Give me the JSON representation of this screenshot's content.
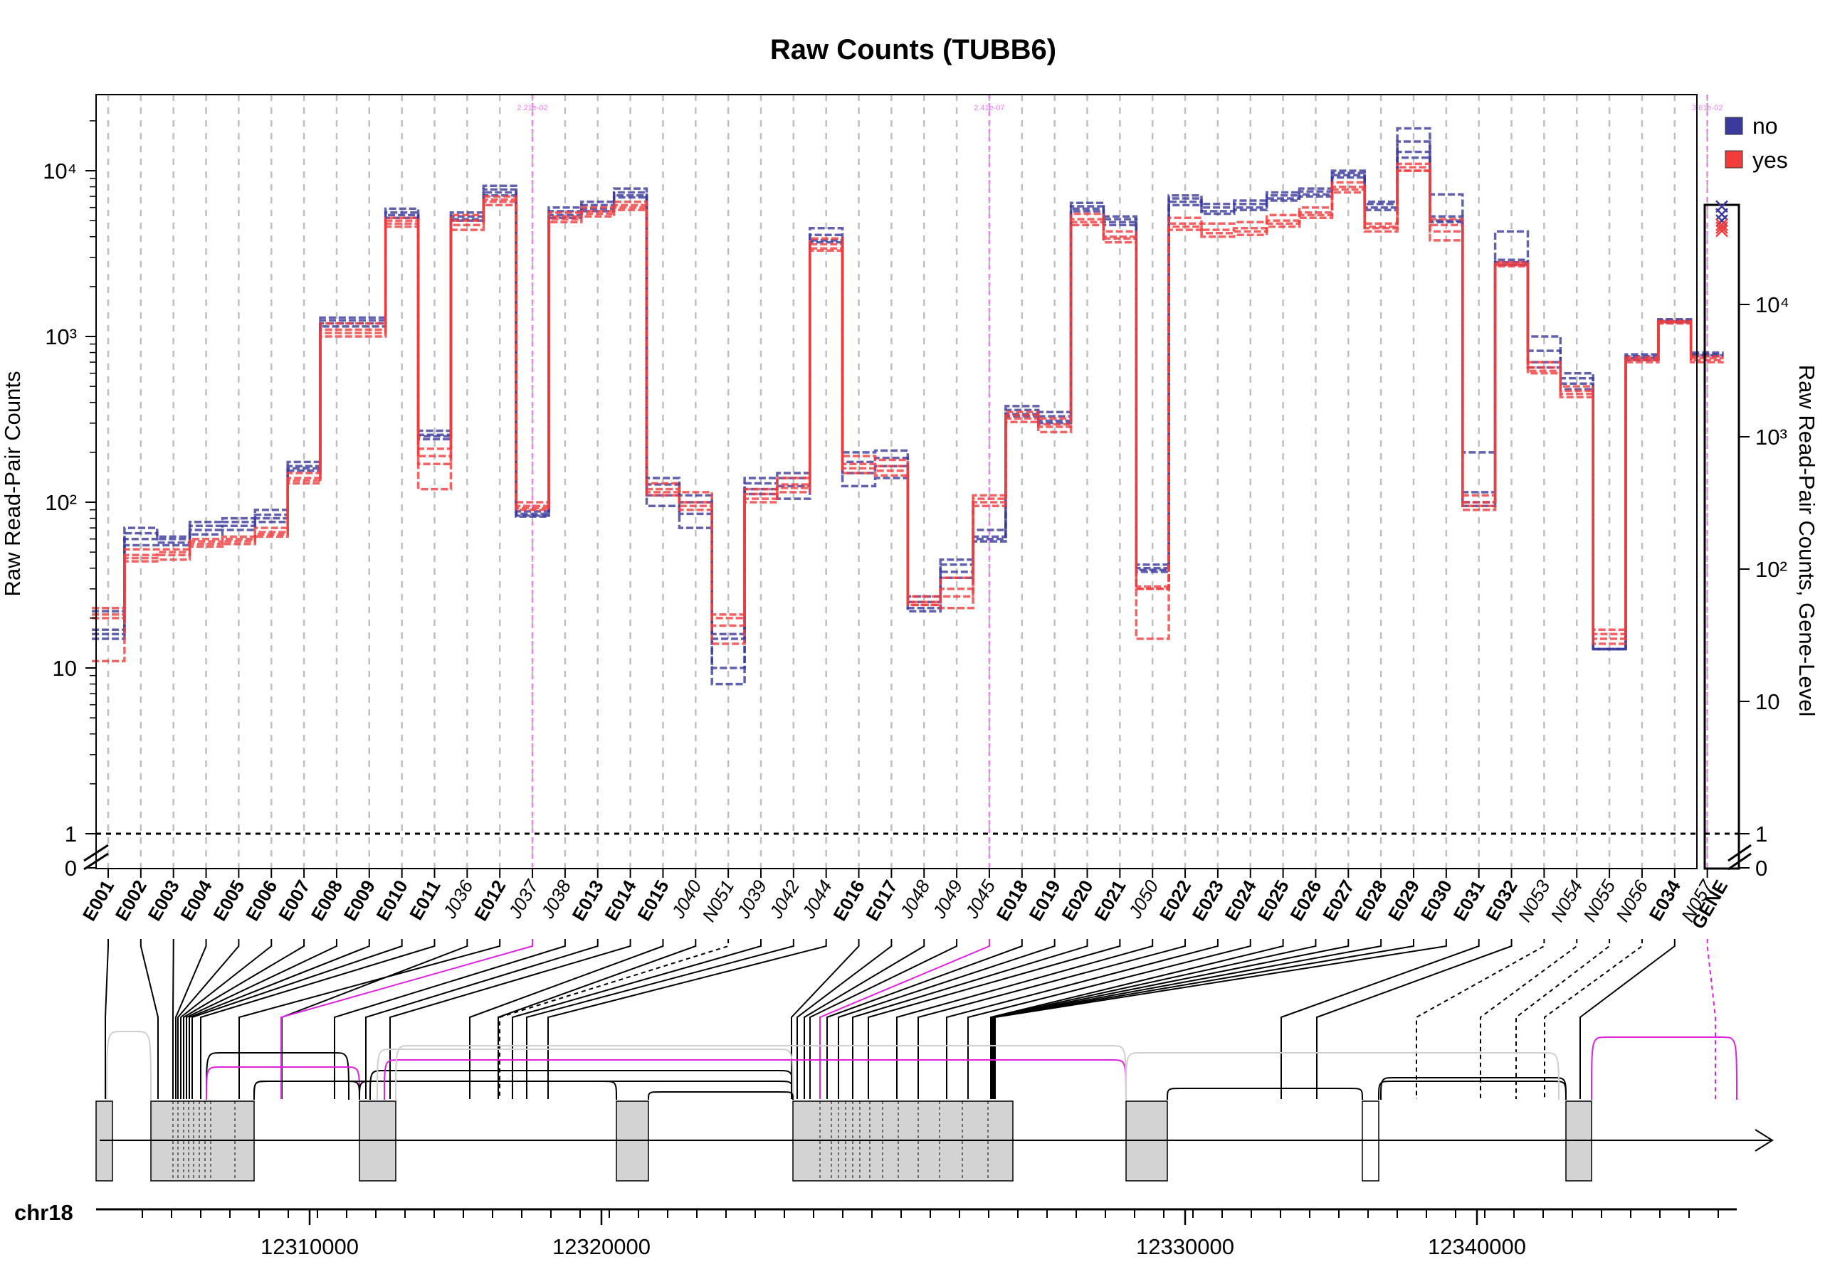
{
  "chart_data": {
    "type": "line",
    "title": "Raw Counts (TUBB6)",
    "ylabel": "Raw Read-Pair Counts",
    "ylabel_right": "Raw Read-Pair Counts, Gene-Level",
    "y_scale": "log",
    "ylim": [
      0,
      25000
    ],
    "y_ticks_left": [
      "0",
      "1",
      "10",
      "10²",
      "10³",
      "10⁴"
    ],
    "y_ticks_right": [
      "0",
      "1",
      "10",
      "10²",
      "10³",
      "10⁴"
    ],
    "grid": "vertical dashed at each bin",
    "legend_position": "top-right",
    "legend": [
      {
        "name": "no",
        "color": "#3a3a9c"
      },
      {
        "name": "yes",
        "color": "#f03c3c"
      }
    ],
    "bins": [
      {
        "label": "E001",
        "kind": "exon"
      },
      {
        "label": "E002",
        "kind": "exon"
      },
      {
        "label": "E003",
        "kind": "exon"
      },
      {
        "label": "E004",
        "kind": "exon"
      },
      {
        "label": "E005",
        "kind": "exon"
      },
      {
        "label": "E006",
        "kind": "exon"
      },
      {
        "label": "E007",
        "kind": "exon"
      },
      {
        "label": "E008",
        "kind": "exon"
      },
      {
        "label": "E009",
        "kind": "exon"
      },
      {
        "label": "E010",
        "kind": "exon"
      },
      {
        "label": "E011",
        "kind": "exon"
      },
      {
        "label": "J036",
        "kind": "junction"
      },
      {
        "label": "E012",
        "kind": "exon"
      },
      {
        "label": "J037",
        "kind": "junction"
      },
      {
        "label": "J038",
        "kind": "junction"
      },
      {
        "label": "E013",
        "kind": "exon"
      },
      {
        "label": "E014",
        "kind": "exon"
      },
      {
        "label": "E015",
        "kind": "exon"
      },
      {
        "label": "J040",
        "kind": "junction"
      },
      {
        "label": "N051",
        "kind": "novel"
      },
      {
        "label": "J039",
        "kind": "junction"
      },
      {
        "label": "J042",
        "kind": "junction"
      },
      {
        "label": "J044",
        "kind": "junction"
      },
      {
        "label": "E016",
        "kind": "exon"
      },
      {
        "label": "E017",
        "kind": "exon"
      },
      {
        "label": "J048",
        "kind": "junction"
      },
      {
        "label": "J049",
        "kind": "junction"
      },
      {
        "label": "J045",
        "kind": "junction"
      },
      {
        "label": "E018",
        "kind": "exon"
      },
      {
        "label": "E019",
        "kind": "exon"
      },
      {
        "label": "E020",
        "kind": "exon"
      },
      {
        "label": "E021",
        "kind": "exon"
      },
      {
        "label": "J050",
        "kind": "junction"
      },
      {
        "label": "E022",
        "kind": "exon"
      },
      {
        "label": "E023",
        "kind": "exon"
      },
      {
        "label": "E024",
        "kind": "exon"
      },
      {
        "label": "E025",
        "kind": "exon"
      },
      {
        "label": "E026",
        "kind": "exon"
      },
      {
        "label": "E027",
        "kind": "exon"
      },
      {
        "label": "E028",
        "kind": "exon"
      },
      {
        "label": "E029",
        "kind": "exon"
      },
      {
        "label": "E030",
        "kind": "exon"
      },
      {
        "label": "E031",
        "kind": "exon"
      },
      {
        "label": "E032",
        "kind": "exon"
      },
      {
        "label": "N053",
        "kind": "novel"
      },
      {
        "label": "N054",
        "kind": "novel"
      },
      {
        "label": "N055",
        "kind": "novel"
      },
      {
        "label": "N056",
        "kind": "novel"
      },
      {
        "label": "E034",
        "kind": "exon"
      },
      {
        "label": "N057",
        "kind": "novel"
      }
    ],
    "gene_label": "GENE",
    "significant_bins": [
      {
        "bin": "J037",
        "pvalue": "2.21e-02"
      },
      {
        "bin": "J045",
        "pvalue": "2.41e-07"
      },
      {
        "bin": "N057",
        "pvalue": "3.61e-02"
      }
    ],
    "series": [
      {
        "name": "no",
        "group": "no",
        "values": [
          22,
          70,
          62,
          76,
          80,
          90,
          175,
          1300,
          1300,
          5900,
          270,
          5600,
          8100,
          85,
          6000,
          6500,
          7800,
          140,
          110,
          8,
          140,
          150,
          4500,
          200,
          205,
          27,
          45,
          68,
          380,
          350,
          6400,
          5300,
          42,
          7100,
          6300,
          6600,
          7400,
          7800,
          10000,
          6500,
          18000,
          7200,
          200,
          4300,
          1000,
          600,
          13,
          780,
          1270,
          800
        ]
      },
      {
        "name": "no",
        "group": "no",
        "values": [
          17,
          65,
          60,
          72,
          76,
          84,
          165,
          1250,
          1250,
          5600,
          255,
          5300,
          7700,
          83,
          5700,
          6200,
          7400,
          128,
          100,
          10,
          130,
          140,
          4100,
          175,
          185,
          25,
          42,
          62,
          360,
          330,
          6100,
          5100,
          40,
          6800,
          6000,
          6300,
          7100,
          7500,
          9700,
          6300,
          15000,
          5300,
          115,
          2900,
          820,
          560,
          13,
          760,
          1250,
          780
        ]
      },
      {
        "name": "no",
        "group": "no",
        "values": [
          15,
          60,
          57,
          68,
          72,
          80,
          160,
          1200,
          1200,
          5400,
          240,
          5100,
          7400,
          82,
          5400,
          5900,
          7100,
          110,
          85,
          15,
          120,
          125,
          3800,
          150,
          165,
          23,
          38,
          58,
          340,
          310,
          5900,
          4900,
          39,
          6500,
          5700,
          6000,
          6800,
          7200,
          9400,
          6000,
          13000,
          5000,
          100,
          2800,
          700,
          520,
          13,
          740,
          1230,
          770
        ]
      },
      {
        "name": "no",
        "group": "no",
        "values": [
          16,
          55,
          55,
          64,
          68,
          76,
          155,
          1150,
          1150,
          5200,
          250,
          5000,
          7100,
          88,
          5200,
          5700,
          6900,
          95,
          70,
          16,
          112,
          105,
          3700,
          125,
          140,
          22,
          35,
          60,
          330,
          300,
          5700,
          4700,
          38,
          6200,
          5500,
          5800,
          6600,
          7000,
          9100,
          5800,
          12000,
          4900,
          95,
          2700,
          650,
          480,
          13,
          720,
          1210,
          760
        ]
      },
      {
        "name": "yes",
        "group": "yes",
        "values": [
          23,
          52,
          52,
          60,
          62,
          70,
          150,
          1200,
          1200,
          5200,
          210,
          5400,
          7000,
          100,
          5600,
          6000,
          6500,
          130,
          115,
          21,
          120,
          140,
          3900,
          190,
          180,
          27,
          35,
          110,
          350,
          320,
          5500,
          4300,
          30,
          5200,
          4800,
          4900,
          5400,
          6000,
          8500,
          4800,
          11000,
          5100,
          110,
          2800,
          700,
          500,
          17,
          750,
          1240,
          760
        ]
      },
      {
        "name": "yes",
        "group": "yes",
        "values": [
          21,
          48,
          50,
          58,
          60,
          66,
          140,
          1100,
          1100,
          5000,
          190,
          5000,
          6700,
          95,
          5300,
          5700,
          6200,
          120,
          100,
          20,
          112,
          128,
          3600,
          170,
          165,
          25,
          30,
          100,
          335,
          295,
          5100,
          4000,
          30,
          4800,
          4400,
          4500,
          5000,
          5600,
          8000,
          4600,
          10500,
          4700,
          100,
          2750,
          650,
          470,
          16,
          730,
          1230,
          740
        ]
      },
      {
        "name": "yes",
        "group": "yes",
        "values": [
          20,
          46,
          48,
          56,
          58,
          64,
          135,
          1050,
          1050,
          4800,
          170,
          4700,
          6500,
          92,
          5100,
          5500,
          6000,
          115,
          95,
          18,
          105,
          122,
          3400,
          160,
          155,
          24,
          27,
          95,
          320,
          285,
          4900,
          3900,
          31,
          4600,
          4200,
          4300,
          4800,
          5400,
          7700,
          4500,
          10000,
          4300,
          95,
          2700,
          620,
          450,
          15,
          720,
          1220,
          720
        ]
      },
      {
        "name": "yes",
        "group": "yes",
        "values": [
          11,
          44,
          45,
          54,
          56,
          62,
          130,
          1000,
          1000,
          4600,
          120,
          4400,
          6200,
          90,
          4900,
          5300,
          5800,
          110,
          90,
          14,
          100,
          115,
          3300,
          150,
          145,
          24,
          23,
          105,
          305,
          265,
          4700,
          3700,
          15,
          4400,
          4000,
          4100,
          4600,
          5200,
          7400,
          4300,
          10000,
          3800,
          90,
          2650,
          600,
          430,
          14,
          700,
          1200,
          700
        ]
      }
    ],
    "gene_level": [
      {
        "group": "no",
        "values": [
          55000,
          48000,
          43000
        ]
      },
      {
        "group": "yes",
        "values": [
          38000,
          40000,
          36000
        ]
      }
    ],
    "genome": {
      "chromosome": "chr18",
      "x_ticks": [
        "12310000",
        "12320000",
        "12330000",
        "12340000"
      ]
    }
  }
}
